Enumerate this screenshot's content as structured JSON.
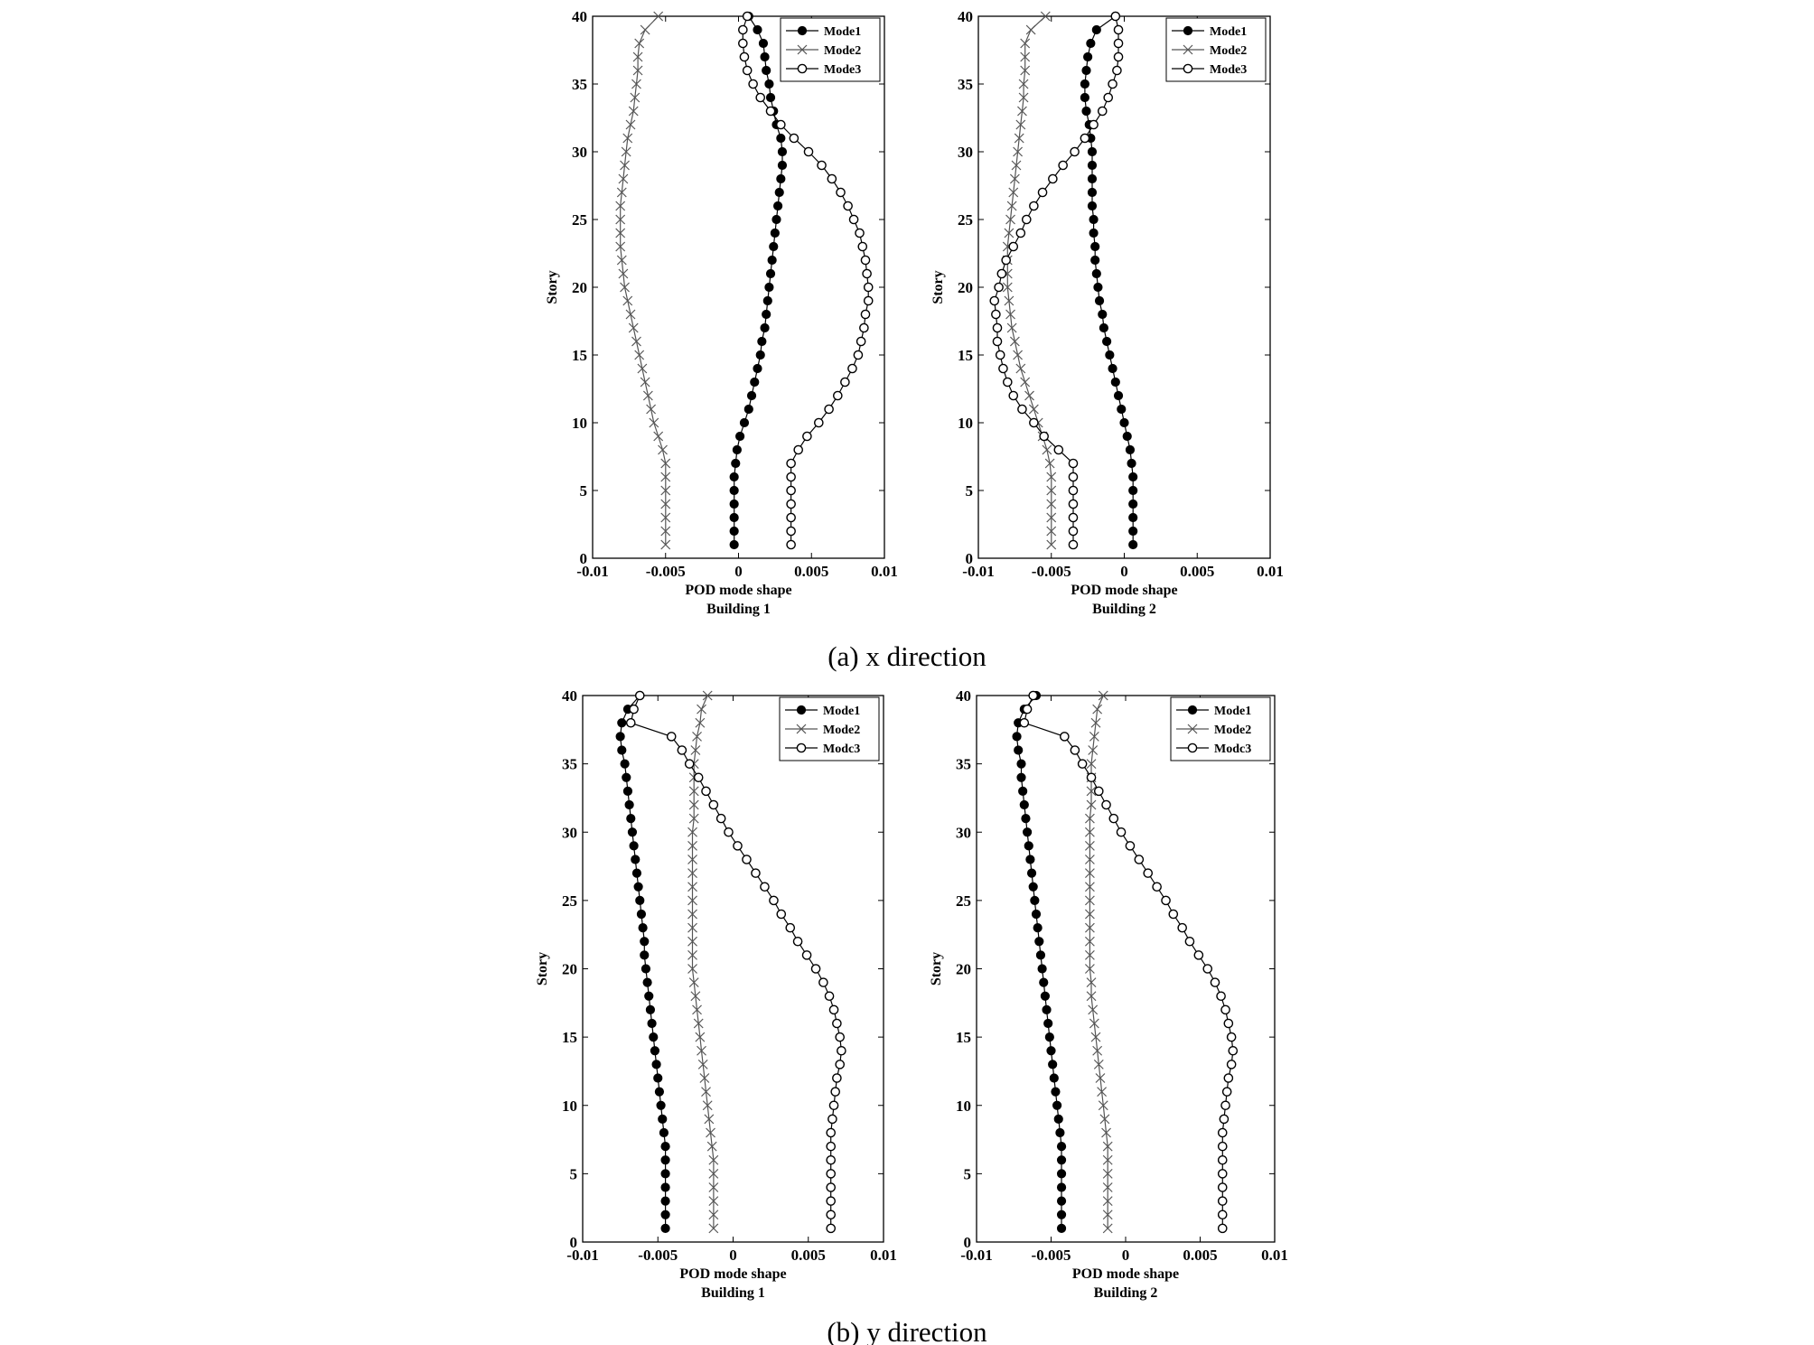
{
  "chart_data": [
    {
      "type": "line",
      "panel": "(a) x direction",
      "building": "Building 1",
      "xlabel": "POD mode shape",
      "ylabel": "Story",
      "xlim": [
        -0.01,
        0.01
      ],
      "ylim": [
        0,
        40
      ],
      "xticks": [
        "-0.01",
        "-0.005",
        "0",
        "0.005",
        "0.01"
      ],
      "yticks": [
        "0",
        "5",
        "10",
        "15",
        "20",
        "25",
        "30",
        "35",
        "40"
      ],
      "legend_position": "top-right",
      "y": [
        1,
        2,
        3,
        4,
        5,
        6,
        7,
        8,
        9,
        10,
        11,
        12,
        13,
        14,
        15,
        16,
        17,
        18,
        19,
        20,
        21,
        22,
        23,
        24,
        25,
        26,
        27,
        28,
        29,
        30,
        31,
        32,
        33,
        34,
        35,
        36,
        37,
        38,
        39,
        40
      ],
      "series": [
        {
          "name": "Mode1",
          "marker": "filled-circle",
          "values": [
            -0.0003,
            -0.0003,
            -0.0003,
            -0.0003,
            -0.0003,
            -0.0003,
            -0.0002,
            -0.0001,
            0.0001,
            0.0004,
            0.0007,
            0.0009,
            0.0011,
            0.0013,
            0.0015,
            0.0016,
            0.0018,
            0.0019,
            0.002,
            0.0021,
            0.0022,
            0.0023,
            0.0024,
            0.0025,
            0.0026,
            0.0027,
            0.0028,
            0.0029,
            0.003,
            0.003,
            0.0029,
            0.0026,
            0.0024,
            0.0022,
            0.0021,
            0.0019,
            0.0018,
            0.0017,
            0.0013,
            0.0007
          ]
        },
        {
          "name": "Mode2",
          "marker": "x",
          "values": [
            -0.005,
            -0.005,
            -0.005,
            -0.005,
            -0.005,
            -0.005,
            -0.005,
            -0.0052,
            -0.0055,
            -0.0058,
            -0.006,
            -0.0062,
            -0.0064,
            -0.0066,
            -0.0068,
            -0.007,
            -0.0072,
            -0.0074,
            -0.0076,
            -0.0078,
            -0.0079,
            -0.008,
            -0.0081,
            -0.0081,
            -0.0081,
            -0.0081,
            -0.008,
            -0.0079,
            -0.0078,
            -0.0077,
            -0.0076,
            -0.0074,
            -0.0072,
            -0.0071,
            -0.007,
            -0.0069,
            -0.0069,
            -0.0068,
            -0.0064,
            -0.0055
          ]
        },
        {
          "name": "Mode3",
          "marker": "open-circle",
          "values": [
            0.0036,
            0.0036,
            0.0036,
            0.0036,
            0.0036,
            0.0036,
            0.0036,
            0.0041,
            0.0047,
            0.0055,
            0.0062,
            0.0068,
            0.0073,
            0.0078,
            0.0082,
            0.0084,
            0.0086,
            0.0087,
            0.0089,
            0.0089,
            0.0088,
            0.0087,
            0.0085,
            0.0083,
            0.0079,
            0.0075,
            0.007,
            0.0064,
            0.0057,
            0.0048,
            0.0038,
            0.0029,
            0.0022,
            0.0015,
            0.001,
            0.0006,
            0.0004,
            0.0003,
            0.0003,
            0.0006
          ]
        }
      ]
    },
    {
      "type": "line",
      "panel": "(a) x direction",
      "building": "Building 2",
      "xlabel": "POD mode shape",
      "ylabel": "Story",
      "xlim": [
        -0.01,
        0.01
      ],
      "ylim": [
        0,
        40
      ],
      "xticks": [
        "-0.01",
        "-0.005",
        "0",
        "0.005",
        "0.01"
      ],
      "yticks": [
        "0",
        "5",
        "10",
        "15",
        "20",
        "25",
        "30",
        "35",
        "40"
      ],
      "legend_position": "top-right",
      "y": [
        1,
        2,
        3,
        4,
        5,
        6,
        7,
        8,
        9,
        10,
        11,
        12,
        13,
        14,
        15,
        16,
        17,
        18,
        19,
        20,
        21,
        22,
        23,
        24,
        25,
        26,
        27,
        28,
        29,
        30,
        31,
        32,
        33,
        34,
        35,
        36,
        37,
        38,
        39,
        40
      ],
      "series": [
        {
          "name": "Mode1",
          "marker": "filled-circle",
          "values": [
            0.0006,
            0.0006,
            0.0006,
            0.0006,
            0.0006,
            0.0006,
            0.0005,
            0.0004,
            0.0002,
            0.0,
            -0.0002,
            -0.0004,
            -0.0006,
            -0.0008,
            -0.001,
            -0.0012,
            -0.0014,
            -0.0015,
            -0.0017,
            -0.0018,
            -0.0019,
            -0.002,
            -0.002,
            -0.0021,
            -0.0021,
            -0.0022,
            -0.0022,
            -0.0022,
            -0.0022,
            -0.0022,
            -0.0023,
            -0.0024,
            -0.0026,
            -0.0027,
            -0.0027,
            -0.0026,
            -0.0025,
            -0.0023,
            -0.0019,
            -0.0006
          ]
        },
        {
          "name": "Mode2",
          "marker": "x",
          "values": [
            -0.005,
            -0.005,
            -0.005,
            -0.005,
            -0.005,
            -0.005,
            -0.0051,
            -0.0053,
            -0.0056,
            -0.0059,
            -0.0062,
            -0.0065,
            -0.0068,
            -0.0071,
            -0.0073,
            -0.0075,
            -0.0077,
            -0.0078,
            -0.0079,
            -0.008,
            -0.008,
            -0.008,
            -0.008,
            -0.0079,
            -0.0078,
            -0.0077,
            -0.0076,
            -0.0075,
            -0.0074,
            -0.0073,
            -0.0072,
            -0.0071,
            -0.007,
            -0.0069,
            -0.0069,
            -0.0068,
            -0.0068,
            -0.0068,
            -0.0064,
            -0.0054
          ]
        },
        {
          "name": "Mode3",
          "marker": "open-circle",
          "values": [
            -0.0035,
            -0.0035,
            -0.0035,
            -0.0035,
            -0.0035,
            -0.0035,
            -0.0035,
            -0.0045,
            -0.0055,
            -0.0062,
            -0.007,
            -0.0076,
            -0.008,
            -0.0083,
            -0.0085,
            -0.0087,
            -0.0087,
            -0.0088,
            -0.0089,
            -0.0086,
            -0.0084,
            -0.0081,
            -0.0076,
            -0.0071,
            -0.0067,
            -0.0062,
            -0.0056,
            -0.0049,
            -0.0042,
            -0.0034,
            -0.0027,
            -0.0021,
            -0.0015,
            -0.0011,
            -0.0008,
            -0.0005,
            -0.0004,
            -0.0004,
            -0.0004,
            -0.0006
          ]
        }
      ]
    },
    {
      "type": "line",
      "panel": "(b) y direction",
      "building": "Building 1",
      "xlabel": "POD mode shape",
      "ylabel": "Story",
      "xlim": [
        -0.01,
        0.01
      ],
      "ylim": [
        0,
        40
      ],
      "xticks": [
        "-0.01",
        "-0.005",
        "0",
        "0.005",
        "0.01"
      ],
      "yticks": [
        "0",
        "5",
        "10",
        "15",
        "20",
        "25",
        "30",
        "35",
        "40"
      ],
      "legend_position": "top-right",
      "y": [
        1,
        2,
        3,
        4,
        5,
        6,
        7,
        8,
        9,
        10,
        11,
        12,
        13,
        14,
        15,
        16,
        17,
        18,
        19,
        20,
        21,
        22,
        23,
        24,
        25,
        26,
        27,
        28,
        29,
        30,
        31,
        32,
        33,
        34,
        35,
        36,
        37,
        38,
        39,
        40
      ],
      "series": [
        {
          "name": "Mode1",
          "marker": "filled-circle",
          "values": [
            -0.0045,
            -0.0045,
            -0.0045,
            -0.0045,
            -0.0045,
            -0.0045,
            -0.0045,
            -0.0046,
            -0.0047,
            -0.0048,
            -0.0049,
            -0.005,
            -0.0051,
            -0.0052,
            -0.0053,
            -0.0054,
            -0.0055,
            -0.0056,
            -0.0057,
            -0.0058,
            -0.0059,
            -0.0059,
            -0.006,
            -0.0061,
            -0.0062,
            -0.0063,
            -0.0064,
            -0.0065,
            -0.0066,
            -0.0067,
            -0.0068,
            -0.0069,
            -0.007,
            -0.0071,
            -0.0072,
            -0.0074,
            -0.0075,
            -0.0074,
            -0.007,
            -0.0062
          ]
        },
        {
          "name": "Mode2",
          "marker": "x",
          "values": [
            -0.0013,
            -0.0013,
            -0.0013,
            -0.0013,
            -0.0013,
            -0.0013,
            -0.0014,
            -0.0015,
            -0.0016,
            -0.0017,
            -0.0018,
            -0.0019,
            -0.002,
            -0.0021,
            -0.0022,
            -0.0023,
            -0.0024,
            -0.0025,
            -0.0026,
            -0.0027,
            -0.0027,
            -0.0027,
            -0.0027,
            -0.0027,
            -0.0027,
            -0.0027,
            -0.0027,
            -0.0027,
            -0.0027,
            -0.0027,
            -0.0026,
            -0.0026,
            -0.0026,
            -0.0026,
            -0.0026,
            -0.0025,
            -0.0024,
            -0.0022,
            -0.0021,
            -0.0017
          ]
        },
        {
          "name": "Mode3",
          "marker": "open-circle",
          "values": [
            0.0065,
            0.0065,
            0.0065,
            0.0065,
            0.0065,
            0.0065,
            0.0065,
            0.0065,
            0.0066,
            0.0067,
            0.0068,
            0.0069,
            0.0071,
            0.0072,
            0.0071,
            0.0069,
            0.0067,
            0.0064,
            0.006,
            0.0055,
            0.0049,
            0.0043,
            0.0038,
            0.0032,
            0.0027,
            0.0021,
            0.0015,
            0.0009,
            0.0003,
            -0.0003,
            -0.0008,
            -0.0013,
            -0.0018,
            -0.0023,
            -0.0029,
            -0.0034,
            -0.0041,
            -0.0068,
            -0.0066,
            -0.0062
          ]
        }
      ]
    },
    {
      "type": "line",
      "panel": "(b) y direction",
      "building": "Building 2",
      "xlabel": "POD mode shape",
      "ylabel": "Story",
      "xlim": [
        -0.01,
        0.01
      ],
      "ylim": [
        0,
        40
      ],
      "xticks": [
        "-0.01",
        "-0.005",
        "0",
        "0.005",
        "0.01"
      ],
      "yticks": [
        "0",
        "5",
        "10",
        "15",
        "20",
        "25",
        "30",
        "35",
        "40"
      ],
      "legend_position": "top-right",
      "y": [
        1,
        2,
        3,
        4,
        5,
        6,
        7,
        8,
        9,
        10,
        11,
        12,
        13,
        14,
        15,
        16,
        17,
        18,
        19,
        20,
        21,
        22,
        23,
        24,
        25,
        26,
        27,
        28,
        29,
        30,
        31,
        32,
        33,
        34,
        35,
        36,
        37,
        38,
        39,
        40
      ],
      "series": [
        {
          "name": "Mode1",
          "marker": "filled-circle",
          "values": [
            -0.0043,
            -0.0043,
            -0.0043,
            -0.0043,
            -0.0043,
            -0.0043,
            -0.0043,
            -0.0044,
            -0.0045,
            -0.0046,
            -0.0047,
            -0.0048,
            -0.0049,
            -0.005,
            -0.0051,
            -0.0052,
            -0.0053,
            -0.0054,
            -0.0055,
            -0.0056,
            -0.0057,
            -0.0058,
            -0.0059,
            -0.006,
            -0.0061,
            -0.0062,
            -0.0063,
            -0.0064,
            -0.0065,
            -0.0066,
            -0.0067,
            -0.0068,
            -0.0069,
            -0.007,
            -0.007,
            -0.0072,
            -0.0073,
            -0.0072,
            -0.0068,
            -0.006
          ]
        },
        {
          "name": "Mode2",
          "marker": "x",
          "values": [
            -0.0012,
            -0.0012,
            -0.0012,
            -0.0012,
            -0.0012,
            -0.0012,
            -0.0012,
            -0.0013,
            -0.0014,
            -0.0015,
            -0.0016,
            -0.0017,
            -0.0018,
            -0.0019,
            -0.002,
            -0.0021,
            -0.0022,
            -0.0023,
            -0.0023,
            -0.0024,
            -0.0024,
            -0.0024,
            -0.0024,
            -0.0024,
            -0.0024,
            -0.0024,
            -0.0024,
            -0.0024,
            -0.0024,
            -0.0024,
            -0.0024,
            -0.0023,
            -0.0023,
            -0.0023,
            -0.0023,
            -0.0022,
            -0.0021,
            -0.002,
            -0.0019,
            -0.0015
          ]
        },
        {
          "name": "Mode3",
          "marker": "open-circle",
          "values": [
            0.0065,
            0.0065,
            0.0065,
            0.0065,
            0.0065,
            0.0065,
            0.0065,
            0.0065,
            0.0066,
            0.0067,
            0.0068,
            0.0069,
            0.0071,
            0.0072,
            0.0071,
            0.0069,
            0.0067,
            0.0064,
            0.006,
            0.0055,
            0.0049,
            0.0043,
            0.0038,
            0.0032,
            0.0027,
            0.0021,
            0.0015,
            0.0009,
            0.0003,
            -0.0003,
            -0.0008,
            -0.0013,
            -0.0018,
            -0.0023,
            -0.0029,
            -0.0034,
            -0.0041,
            -0.0068,
            -0.0066,
            -0.0062
          ]
        }
      ]
    }
  ],
  "captions": {
    "panel_a": "(a) x direction",
    "panel_b": "(b) y direction"
  },
  "legend_labels": {
    "top": [
      "Mode1",
      "Mode2",
      "Mode3"
    ],
    "bottom": [
      "Mode1",
      "Mode2",
      "Modc3"
    ]
  },
  "colors": {
    "mode1": "#000000",
    "mode2": "#555555",
    "mode3": "#000000",
    "axes": "#000000",
    "background": "#ffffff"
  }
}
